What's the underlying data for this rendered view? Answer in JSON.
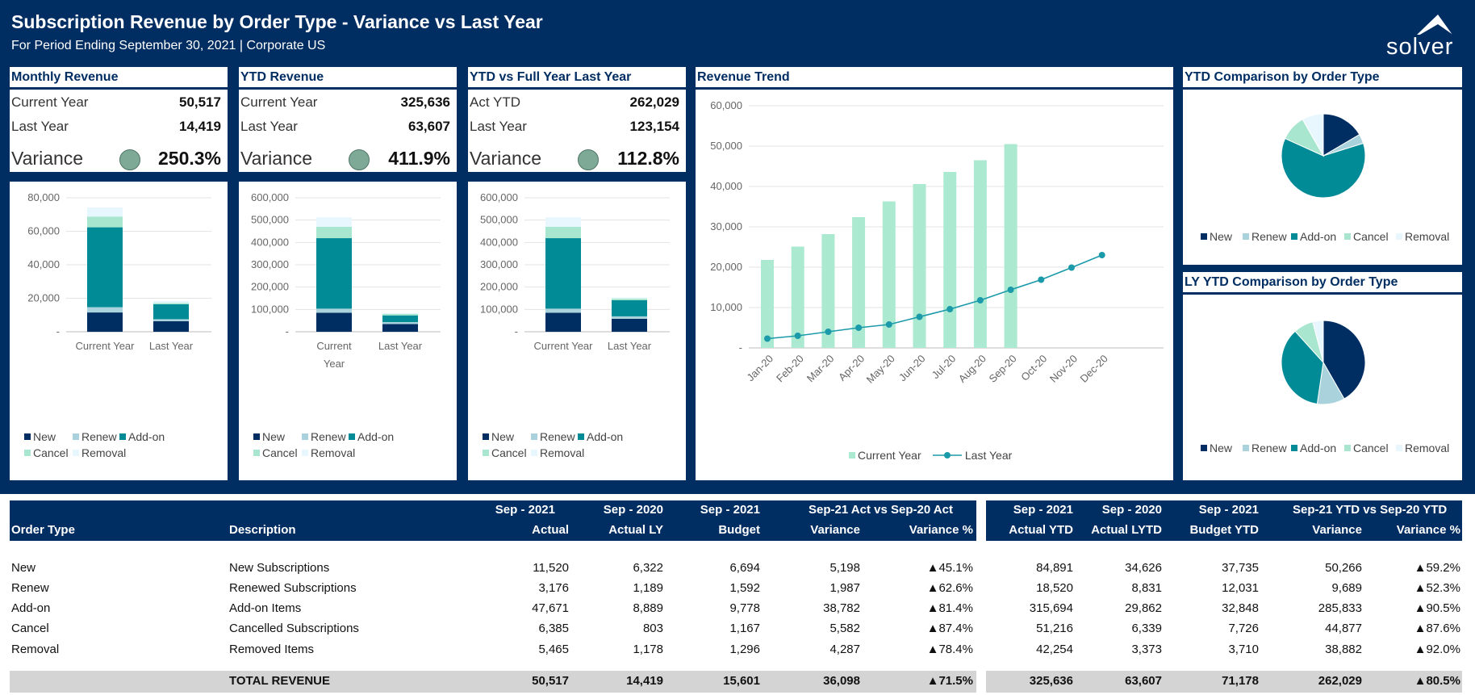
{
  "header": {
    "title": "Subscription Revenue by Order Type - Variance vs Last Year",
    "subtitle": "For Period Ending September 30, 2021 | Corporate US",
    "logo_text": "solver"
  },
  "colors": {
    "new": "#002d62",
    "renew": "#a9d2dc",
    "addon": "#008b96",
    "cancel": "#a8e6cf",
    "removal": "#e8f7fd",
    "variance_dot": "#7ea996",
    "trend_bar": "#abe9d1",
    "trend_line": "#1b9aaa"
  },
  "legend_labels": {
    "new": "New",
    "renew": "Renew",
    "addon": "Add-on",
    "cancel": "Cancel",
    "removal": "Removal"
  },
  "kpi": {
    "monthly": {
      "title": "Monthly Revenue",
      "row1_label": "Current Year",
      "row1_value": "50,517",
      "row2_label": "Last Year",
      "row2_value": "14,419",
      "var_label": "Variance",
      "var_value": "250.3%"
    },
    "ytd": {
      "title": "YTD Revenue",
      "row1_label": "Current Year",
      "row1_value": "325,636",
      "row2_label": "Last Year",
      "row2_value": "63,607",
      "var_label": "Variance",
      "var_value": "411.9%"
    },
    "ytd_vs_fy": {
      "title": "YTD vs Full Year Last Year",
      "row1_label": "Act YTD",
      "row1_value": "262,029",
      "row2_label": "Last Year",
      "row2_value": "123,154",
      "var_label": "Variance",
      "var_value": "112.8%"
    }
  },
  "panels": {
    "trend_title": "Revenue Trend",
    "pie1_title": "YTD Comparison by Order Type",
    "pie2_title": "LY YTD Comparison by Order Type"
  },
  "chart_data": [
    {
      "type": "bar",
      "stacked": true,
      "categories": [
        "Current Year",
        "Last Year"
      ],
      "series": [
        {
          "name": "New",
          "values": [
            11520,
            6322
          ]
        },
        {
          "name": "Renew",
          "values": [
            3176,
            1189
          ]
        },
        {
          "name": "Add-on",
          "values": [
            47671,
            8889
          ]
        },
        {
          "name": "Cancel",
          "values": [
            6385,
            803
          ]
        },
        {
          "name": "Removal",
          "values": [
            5465,
            1178
          ]
        }
      ],
      "yticks": [
        "-",
        "20,000",
        "40,000",
        "60,000",
        "80,000"
      ],
      "ylim": [
        0,
        80000
      ],
      "legend": "bottom"
    },
    {
      "type": "bar",
      "stacked": true,
      "categories": [
        "Current Year",
        "Last Year"
      ],
      "series": [
        {
          "name": "New",
          "values": [
            84891,
            34626
          ]
        },
        {
          "name": "Renew",
          "values": [
            18520,
            8831
          ]
        },
        {
          "name": "Add-on",
          "values": [
            315694,
            29862
          ]
        },
        {
          "name": "Cancel",
          "values": [
            51216,
            6339
          ]
        },
        {
          "name": "Removal",
          "values": [
            42254,
            3373
          ]
        }
      ],
      "yticks": [
        "-",
        "100,000",
        "200,000",
        "300,000",
        "400,000",
        "500,000",
        "600,000"
      ],
      "ylim": [
        0,
        600000
      ],
      "legend": "bottom"
    },
    {
      "type": "bar",
      "stacked": true,
      "categories": [
        "Current Year",
        "Last Year"
      ],
      "series": [
        {
          "name": "New",
          "values": [
            84891,
            58000
          ]
        },
        {
          "name": "Renew",
          "values": [
            18520,
            11000
          ]
        },
        {
          "name": "Add-on",
          "values": [
            315694,
            72000
          ]
        },
        {
          "name": "Cancel",
          "values": [
            51216,
            8000
          ]
        },
        {
          "name": "Removal",
          "values": [
            42254,
            5000
          ]
        }
      ],
      "yticks": [
        "-",
        "100,000",
        "200,000",
        "300,000",
        "400,000",
        "500,000",
        "600,000"
      ],
      "ylim": [
        0,
        600000
      ],
      "legend": "bottom"
    },
    {
      "type": "bar+line",
      "categories": [
        "Jan-20",
        "Feb-20",
        "Mar-20",
        "Apr-20",
        "May-20",
        "Jun-20",
        "Jul-20",
        "Aug-20",
        "Sep-20",
        "Oct-20",
        "Nov-20",
        "Dec-20"
      ],
      "series": [
        {
          "name": "Current Year",
          "type": "bar",
          "values": [
            21800,
            25100,
            28200,
            32400,
            36300,
            40600,
            43600,
            46500,
            50500,
            null,
            null,
            null
          ]
        },
        {
          "name": "Last Year",
          "type": "line",
          "values": [
            2300,
            3000,
            4000,
            5000,
            5800,
            7700,
            9600,
            11800,
            14400,
            16900,
            19900,
            23000
          ]
        }
      ],
      "yticks": [
        "-",
        "10,000",
        "20,000",
        "30,000",
        "40,000",
        "50,000",
        "60,000"
      ],
      "ylim": [
        0,
        60000
      ],
      "legend": "bottom"
    },
    {
      "type": "pie",
      "labels": [
        "New",
        "Renew",
        "Add-on",
        "Cancel",
        "Removal"
      ],
      "values": [
        84891,
        18520,
        315694,
        51216,
        42254
      ],
      "legend": "bottom"
    },
    {
      "type": "pie",
      "labels": [
        "New",
        "Renew",
        "Add-on",
        "Cancel",
        "Removal"
      ],
      "values": [
        34626,
        8831,
        29862,
        6339,
        3373
      ],
      "legend": "bottom"
    }
  ],
  "table": {
    "headers_top": {
      "m_actual": "Sep - 2021",
      "m_actual_ly": "Sep - 2020",
      "m_budget": "Sep - 2021",
      "m_var_group": "Sep-21 Act vs Sep-20 Act",
      "y_actual": "Sep - 2021",
      "y_actual_ly": "Sep - 2020",
      "y_budget": "Sep - 2021",
      "y_var_group": "Sep-21 YTD vs Sep-20 YTD"
    },
    "headers": {
      "order_type": "Order Type",
      "description": "Description",
      "m_actual": "Actual",
      "m_actual_ly": "Actual LY",
      "m_budget": "Budget",
      "m_var": "Variance",
      "m_varp": "Variance %",
      "y_actual": "Actual YTD",
      "y_actual_ly": "Actual LYTD",
      "y_budget": "Budget YTD",
      "y_var": "Variance",
      "y_varp": "Variance %"
    },
    "rows": [
      [
        "New",
        "New Subscriptions",
        "11,520",
        "6,322",
        "6,694",
        "5,198",
        "▲45.1%",
        "84,891",
        "34,626",
        "37,735",
        "50,266",
        "▲59.2%"
      ],
      [
        "Renew",
        "Renewed Subscriptions",
        "3,176",
        "1,189",
        "1,592",
        "1,987",
        "▲62.6%",
        "18,520",
        "8,831",
        "12,031",
        "9,689",
        "▲52.3%"
      ],
      [
        "Add-on",
        "Add-on Items",
        "47,671",
        "8,889",
        "9,778",
        "38,782",
        "▲81.4%",
        "315,694",
        "29,862",
        "32,848",
        "285,833",
        "▲90.5%"
      ],
      [
        "Cancel",
        "Cancelled Subscriptions",
        "6,385",
        "803",
        "1,167",
        "5,582",
        "▲87.4%",
        "51,216",
        "6,339",
        "7,726",
        "44,877",
        "▲87.6%"
      ],
      [
        "Removal",
        "Removed Items",
        "5,465",
        "1,178",
        "1,296",
        "4,287",
        "▲78.4%",
        "42,254",
        "3,373",
        "3,710",
        "38,882",
        "▲92.0%"
      ]
    ],
    "total": [
      "",
      "TOTAL REVENUE",
      "50,517",
      "14,419",
      "15,601",
      "36,098",
      "▲71.5%",
      "325,636",
      "63,607",
      "71,178",
      "262,029",
      "▲80.5%"
    ]
  }
}
